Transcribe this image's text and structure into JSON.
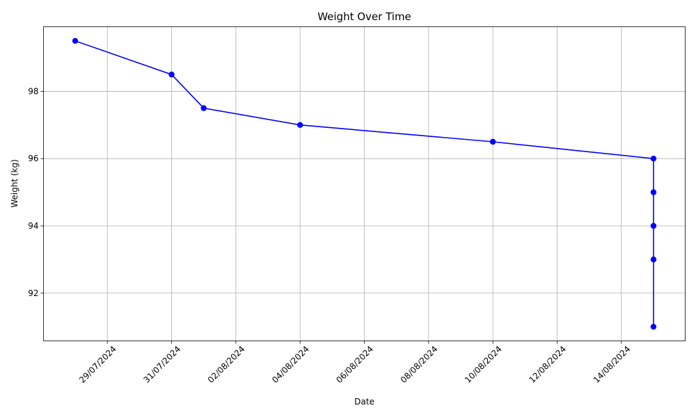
{
  "chart_data": {
    "type": "line",
    "title": "Weight Over Time",
    "xlabel": "Date",
    "ylabel": "Weight (kg)",
    "x_tick_labels": [
      "29/07/2024",
      "31/07/2024",
      "02/08/2024",
      "04/08/2024",
      "06/08/2024",
      "08/08/2024",
      "10/08/2024",
      "12/08/2024",
      "14/08/2024"
    ],
    "x_ticks": [
      "2024-07-29",
      "2024-07-31",
      "2024-08-02",
      "2024-08-04",
      "2024-08-06",
      "2024-08-08",
      "2024-08-10",
      "2024-08-12",
      "2024-08-14"
    ],
    "y_ticks": [
      92,
      94,
      96,
      98
    ],
    "xlim": [
      "2024-07-27T00:19",
      "2024-08-15T23:41"
    ],
    "ylim": [
      90.58,
      99.92
    ],
    "grid": true,
    "series": [
      {
        "color": "#0000ff",
        "marker": "circle",
        "x": [
          "2024-07-28",
          "2024-07-31",
          "2024-08-01",
          "2024-08-04",
          "2024-08-10",
          "2024-08-15",
          "2024-08-15",
          "2024-08-15",
          "2024-08-15",
          "2024-08-15"
        ],
        "y": [
          99.5,
          98.5,
          97.5,
          97.0,
          96.5,
          96.0,
          95.0,
          94.0,
          93.0,
          91.0
        ]
      }
    ]
  }
}
